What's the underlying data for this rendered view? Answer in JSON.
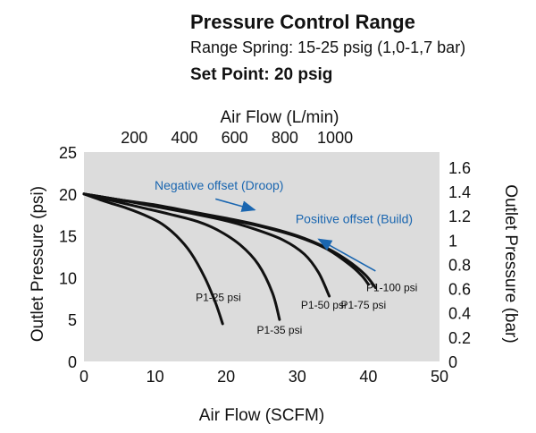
{
  "header": {
    "title": "Pressure Control Range",
    "range_spring": "Range Spring: 15-25 psig (1,0-1,7 bar)",
    "set_point": "Set Point: 20 psig"
  },
  "colors": {
    "plot_bg": "#dcdcdc",
    "curve": "#111111",
    "annotation": "#1a66b0"
  },
  "chart_data": {
    "type": "line",
    "xlabel": "Air Flow (SCFM)",
    "ylabel": "Outlet Pressure (psi)",
    "x2label": "Air Flow (L/min)",
    "y2label": "Outlet Pressure (bar)",
    "xlim": [
      0,
      50
    ],
    "ylim": [
      0,
      25
    ],
    "x2lim": [
      0,
      1416
    ],
    "y2lim": [
      0,
      1.724
    ],
    "x_ticks": [
      "0",
      "10",
      "20",
      "30",
      "40",
      "50"
    ],
    "y_ticks": [
      "0",
      "5",
      "10",
      "15",
      "20",
      "25"
    ],
    "x2_ticks": [
      {
        "label": "200",
        "value": 200
      },
      {
        "label": "400",
        "value": 400
      },
      {
        "label": "600",
        "value": 600
      },
      {
        "label": "800",
        "value": 800
      },
      {
        "label": "1000",
        "value": 1000
      }
    ],
    "y2_ticks": [
      {
        "label": "0",
        "value": 0
      },
      {
        "label": "0.2",
        "value": 0.2
      },
      {
        "label": "0.4",
        "value": 0.4
      },
      {
        "label": "0.6",
        "value": 0.6
      },
      {
        "label": "0.8",
        "value": 0.8
      },
      {
        "label": "1",
        "value": 1.0
      },
      {
        "label": "1.2",
        "value": 1.2
      },
      {
        "label": "1.4",
        "value": 1.4
      },
      {
        "label": "1.6",
        "value": 1.6
      }
    ],
    "series": [
      {
        "name": "P1-25 psi",
        "x": [
          0,
          3,
          6,
          9,
          11,
          13,
          15,
          17,
          18.5,
          19.5
        ],
        "y": [
          20,
          19.1,
          18.3,
          17.3,
          16.4,
          15,
          13,
          10,
          7,
          4.5
        ]
      },
      {
        "name": "P1-35 psi",
        "x": [
          0,
          4,
          8,
          12,
          16,
          19,
          22,
          24.5,
          26.5,
          27.5
        ],
        "y": [
          20,
          19.2,
          18.4,
          17.6,
          16.7,
          15.6,
          13.9,
          11.6,
          8.2,
          5
        ]
      },
      {
        "name": "P1-50 psi",
        "x": [
          0,
          5,
          10,
          15,
          20,
          24,
          28,
          31,
          33,
          34.5
        ],
        "y": [
          20,
          19.3,
          18.5,
          17.7,
          16.8,
          15.8,
          14.5,
          12.8,
          10.6,
          7.8
        ]
      },
      {
        "name": "P1-75 psi",
        "x": [
          0,
          5,
          10,
          15,
          20,
          25,
          30,
          34,
          37,
          39,
          40
        ],
        "y": [
          20,
          19.3,
          18.6,
          17.8,
          17.0,
          16.1,
          14.9,
          13.5,
          11.8,
          10.3,
          9.2
        ]
      },
      {
        "name": "P1-100 psi",
        "x": [
          0,
          5,
          10,
          15,
          20,
          25,
          30,
          34,
          37,
          39.5,
          41
        ],
        "y": [
          20,
          19.3,
          18.7,
          17.9,
          17.1,
          16.2,
          15.0,
          13.6,
          12.1,
          10.4,
          8.8
        ]
      }
    ],
    "annotations": [
      {
        "text": "Negative offset (Droop)",
        "x": 19,
        "y": 20.5,
        "arrow_from": [
          18.5,
          19.4
        ],
        "arrow_to": [
          24,
          18.1
        ]
      },
      {
        "text": "Positive offset (Build)",
        "x": 38,
        "y": 16.5,
        "arrow_from": [
          41,
          10.8
        ],
        "arrow_to": [
          33,
          14.6
        ]
      }
    ],
    "curve_labels": [
      {
        "text": "P1-25 psi",
        "x": 18.9,
        "y": 7.2
      },
      {
        "text": "P1-35 psi",
        "x": 27.5,
        "y": 3.3
      },
      {
        "text": "P1-50 psi",
        "x": 33.7,
        "y": 6.3
      },
      {
        "text": "P1-75 psi",
        "x": 39.3,
        "y": 6.3
      },
      {
        "text": "P1-100 psi",
        "x": 43.3,
        "y": 8.4
      }
    ]
  }
}
